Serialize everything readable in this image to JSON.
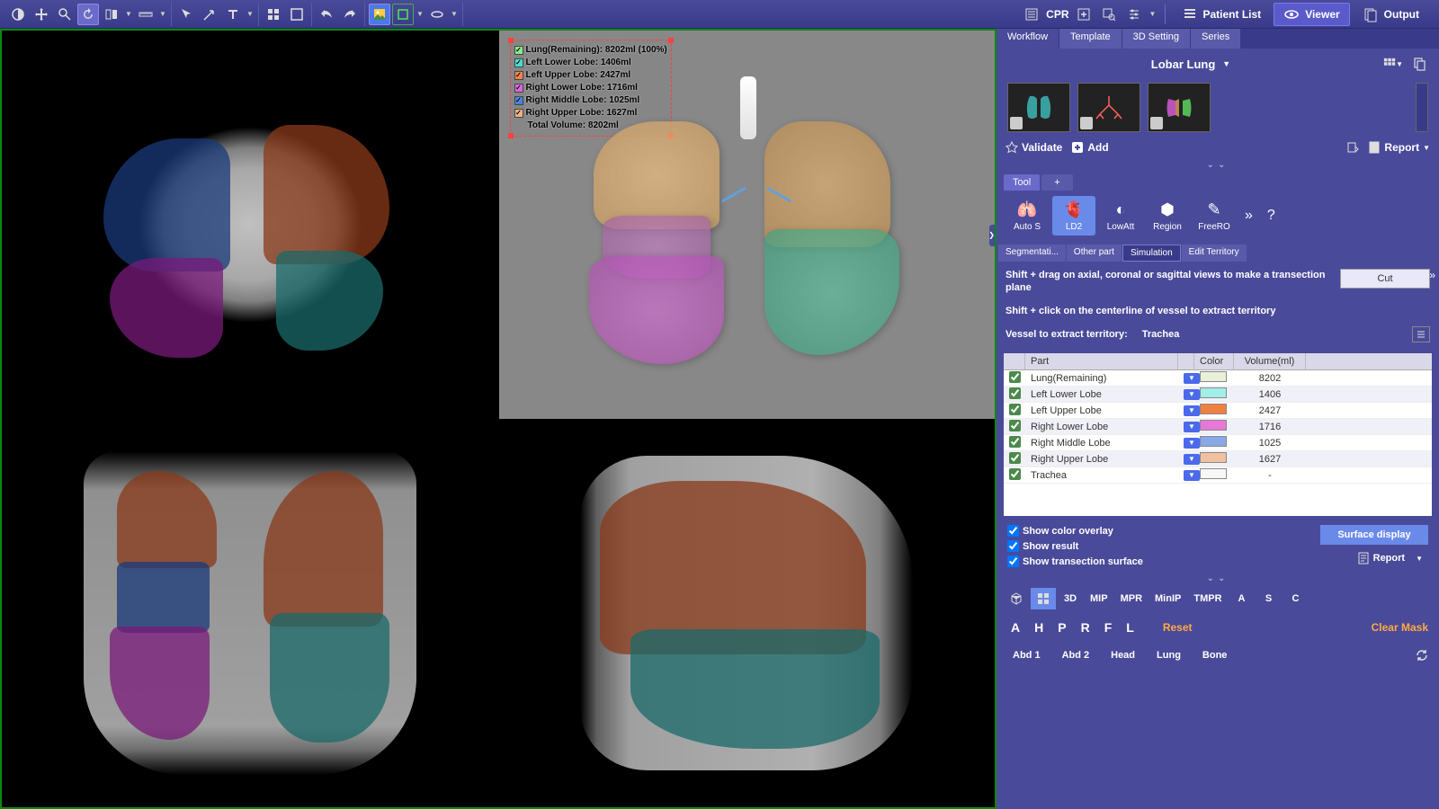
{
  "colors": {
    "toolbar_bg": "#3a3a8a",
    "panel_bg": "#4a4a9a",
    "active": "#6a8aea",
    "accent_orange": "#ffaa40"
  },
  "top_toolbar": {
    "cpr_label": "CPR"
  },
  "right_menu": {
    "patient_list": "Patient List",
    "viewer": "Viewer",
    "output": "Output"
  },
  "panel_tabs": [
    "Workflow",
    "Template",
    "3D Setting",
    "Series"
  ],
  "workflow": {
    "title": "Lobar Lung",
    "validate": "Validate",
    "add": "Add",
    "report": "Report"
  },
  "tool_tab": "Tool",
  "tools": {
    "auto_s": "Auto S",
    "ld2": "LD2",
    "lowatt": "LowAtt",
    "region": "Region",
    "freero": "FreeRO",
    "more": "»",
    "help": "?"
  },
  "sim_tabs": [
    "Segmentati...",
    "Other part",
    "Simulation",
    "Edit Territory"
  ],
  "simulation": {
    "instruction1": "Shift + drag on axial, coronal or sagittal views to make a transection plane",
    "cut_label": "Cut",
    "instruction2": "Shift + click on the centerline of vessel to extract territory",
    "vessel_label": "Vessel to extract territory:",
    "vessel_value": "Trachea"
  },
  "parts_table": {
    "headers": {
      "part": "Part",
      "color": "Color",
      "volume": "Volume(ml)"
    },
    "rows": [
      {
        "checked": true,
        "part": "Lung(Remaining)",
        "color": "#e8f0d8",
        "volume": "8202"
      },
      {
        "checked": true,
        "part": "Left Lower Lobe",
        "color": "#a0f0e8",
        "volume": "1406"
      },
      {
        "checked": true,
        "part": "Left Upper Lobe",
        "color": "#f08040",
        "volume": "2427"
      },
      {
        "checked": true,
        "part": "Right Lower Lobe",
        "color": "#e878d8",
        "volume": "1716"
      },
      {
        "checked": true,
        "part": "Right Middle Lobe",
        "color": "#88a8e8",
        "volume": "1025"
      },
      {
        "checked": true,
        "part": "Right Upper Lobe",
        "color": "#f0c0a0",
        "volume": "1627"
      },
      {
        "checked": true,
        "part": "Trachea",
        "color": "#f8f8f8",
        "volume": "-"
      }
    ]
  },
  "display": {
    "show_overlay": "Show color overlay",
    "show_result": "Show result",
    "show_transection": "Show transection surface",
    "surface_display": "Surface display",
    "report": "Report"
  },
  "render_modes": [
    "3D",
    "MIP",
    "MPR",
    "MinIP",
    "TMPR",
    "A",
    "S",
    "C"
  ],
  "orientations": [
    "A",
    "H",
    "P",
    "R",
    "F",
    "L"
  ],
  "orient_actions": {
    "reset": "Reset",
    "clear_mask": "Clear Mask"
  },
  "presets": [
    "Abd 1",
    "Abd 2",
    "Head",
    "Lung",
    "Bone"
  ],
  "volume_legend": {
    "rows": [
      {
        "color": "#80f080",
        "label": "Lung(Remaining): 8202ml (100%)"
      },
      {
        "color": "#40e0d0",
        "label": "Left Lower Lobe: 1406ml"
      },
      {
        "color": "#ff8040",
        "label": "Left Upper Lobe: 2427ml"
      },
      {
        "color": "#e060e0",
        "label": "Right Lower Lobe: 1716ml"
      },
      {
        "color": "#4080e0",
        "label": "Right Middle Lobe: 1025ml"
      },
      {
        "color": "#f0b080",
        "label": "Right Upper Lobe: 1627ml"
      },
      {
        "color": "",
        "label": "Total Volume: 8202ml"
      }
    ]
  },
  "lobe_colors": {
    "rul_navy": "#1a3a7a",
    "rll_purple": "#7a1a7a",
    "lul_rust": "#8a3a1a",
    "lll_teal": "#1a6a6a",
    "rml_blue": "#4070c0"
  }
}
